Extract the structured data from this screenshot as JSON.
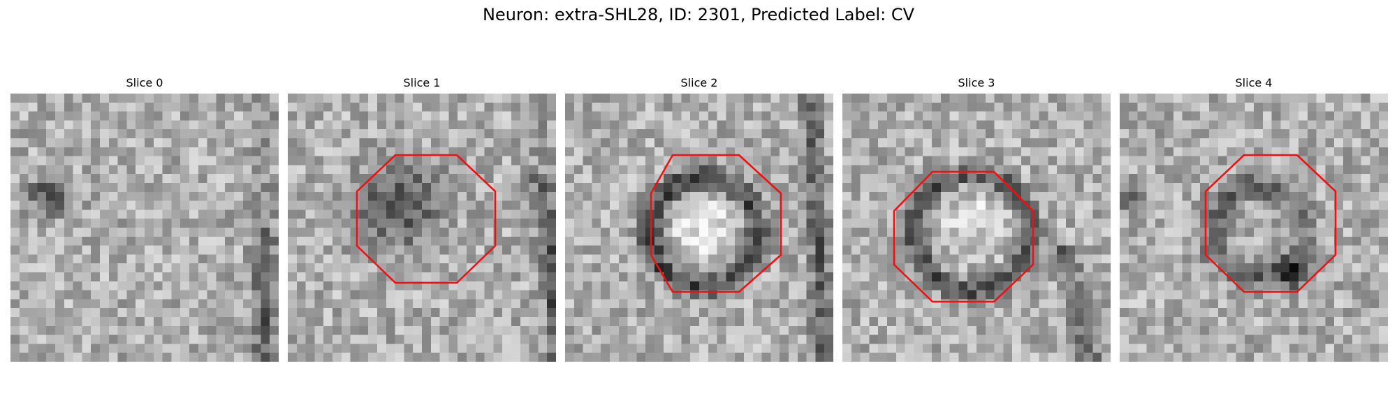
{
  "figure": {
    "title": "Neuron: extra-SHL28, ID: 2301, Predicted Label: CV"
  },
  "colors": {
    "outline": "#ee1111",
    "background": "#ffffff"
  },
  "slices": [
    {
      "title": "Slice 0",
      "has_outline": false
    },
    {
      "title": "Slice 1",
      "has_outline": true
    },
    {
      "title": "Slice 2",
      "has_outline": true
    },
    {
      "title": "Slice 3",
      "has_outline": true
    },
    {
      "title": "Slice 4",
      "has_outline": true
    }
  ]
}
